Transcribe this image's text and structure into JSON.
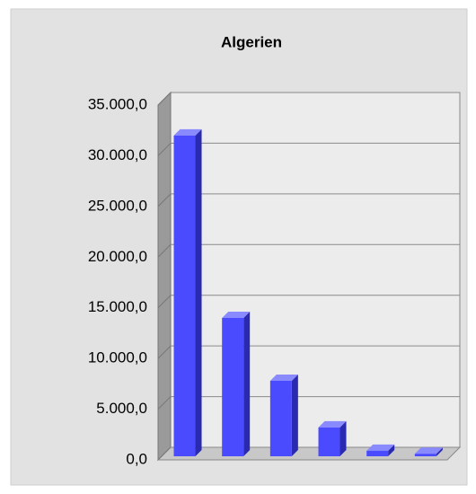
{
  "chart_data": {
    "type": "bar",
    "title": "Algerien",
    "categories": [
      null,
      null,
      null,
      null,
      null,
      null
    ],
    "values": [
      32000,
      14000,
      7800,
      3200,
      900,
      600
    ],
    "color": "#4a4aff",
    "ylim": [
      0,
      35000
    ],
    "yticks": [
      {
        "value": 0,
        "label": "0,0"
      },
      {
        "value": 5000,
        "label": "5.000,0"
      },
      {
        "value": 10000,
        "label": "10.000,0"
      },
      {
        "value": 15000,
        "label": "15.000,0"
      },
      {
        "value": 20000,
        "label": "20.000,0"
      },
      {
        "value": 25000,
        "label": "25.000,0"
      },
      {
        "value": 30000,
        "label": "30.000,0"
      },
      {
        "value": 35000,
        "label": "35.000,0"
      }
    ],
    "grid": true
  }
}
